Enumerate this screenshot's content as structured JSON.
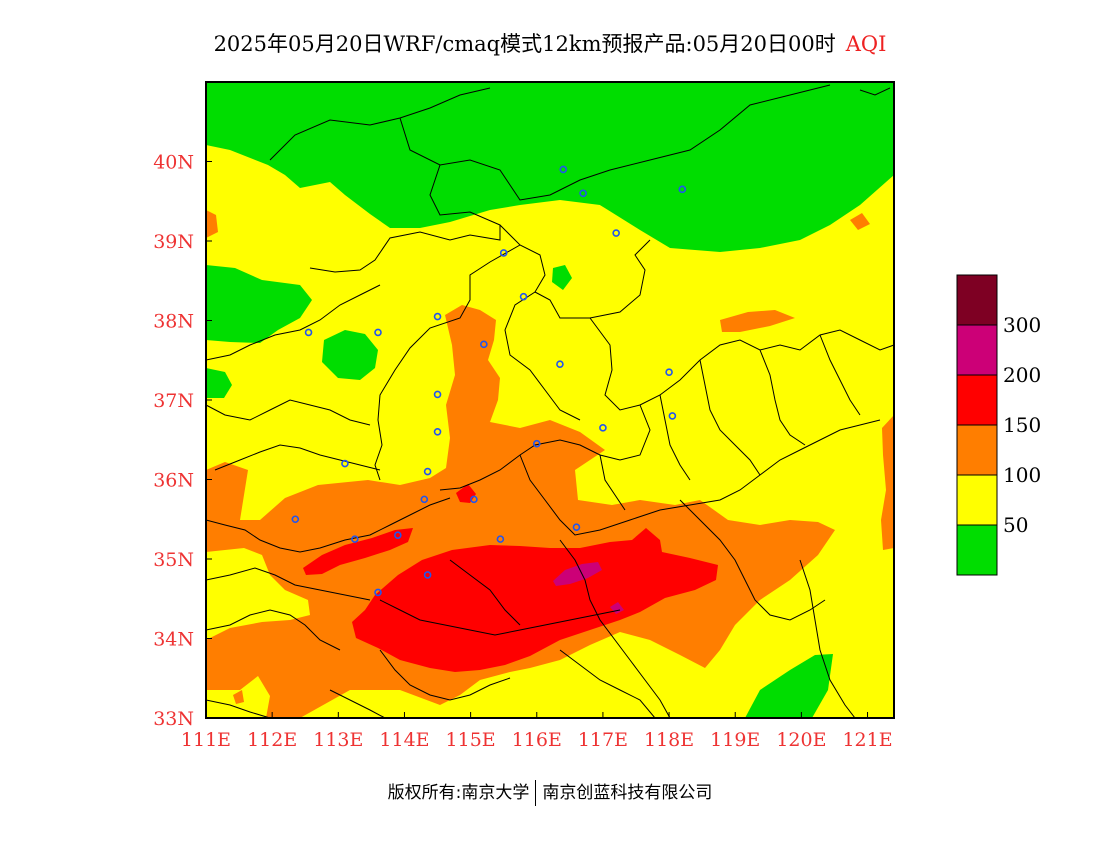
{
  "title": {
    "main": "2025年05月20日WRF/cmaq模式12km预报产品:05月20日00时",
    "variable": "AQI"
  },
  "map": {
    "lon_range": [
      111,
      121.4
    ],
    "lat_range": [
      33,
      41
    ],
    "lon_ticks": [
      {
        "value": 111,
        "label": "111E"
      },
      {
        "value": 112,
        "label": "112E"
      },
      {
        "value": 113,
        "label": "113E"
      },
      {
        "value": 114,
        "label": "114E"
      },
      {
        "value": 115,
        "label": "115E"
      },
      {
        "value": 116,
        "label": "116E"
      },
      {
        "value": 117,
        "label": "117E"
      },
      {
        "value": 118,
        "label": "118E"
      },
      {
        "value": 119,
        "label": "119E"
      },
      {
        "value": 120,
        "label": "120E"
      },
      {
        "value": 121,
        "label": "121E"
      }
    ],
    "lat_ticks": [
      {
        "value": 33,
        "label": "33N"
      },
      {
        "value": 34,
        "label": "34N"
      },
      {
        "value": 35,
        "label": "35N"
      },
      {
        "value": 36,
        "label": "36N"
      },
      {
        "value": 37,
        "label": "37N"
      },
      {
        "value": 38,
        "label": "38N"
      },
      {
        "value": 39,
        "label": "39N"
      },
      {
        "value": 40,
        "label": "40N"
      }
    ],
    "colors": {
      "good": "#00dd00",
      "moderate": "#ffff00",
      "sensitive": "#ff7e00",
      "unhealthy": "#ff0000",
      "very_unhealthy": "#cc0077",
      "hazardous": "#7e0023"
    },
    "stations": [
      [
        116.4,
        39.9
      ],
      [
        116.7,
        39.6
      ],
      [
        117.2,
        39.1
      ],
      [
        118.2,
        39.65
      ],
      [
        115.5,
        38.85
      ],
      [
        115.8,
        38.3
      ],
      [
        114.5,
        38.05
      ],
      [
        112.55,
        37.85
      ],
      [
        113.6,
        37.85
      ],
      [
        115.2,
        37.7
      ],
      [
        116.35,
        37.45
      ],
      [
        114.5,
        37.07
      ],
      [
        114.5,
        36.6
      ],
      [
        117.0,
        36.65
      ],
      [
        118.05,
        36.8
      ],
      [
        118.0,
        37.35
      ],
      [
        116.0,
        36.45
      ],
      [
        113.1,
        36.2
      ],
      [
        114.35,
        36.1
      ],
      [
        114.3,
        35.75
      ],
      [
        115.05,
        35.75
      ],
      [
        112.35,
        35.5
      ],
      [
        113.25,
        35.25
      ],
      [
        113.9,
        35.3
      ],
      [
        115.45,
        35.25
      ],
      [
        116.6,
        35.4
      ],
      [
        114.35,
        34.8
      ],
      [
        113.6,
        34.58
      ]
    ]
  },
  "legend": {
    "labels": [
      "50",
      "100",
      "150",
      "200",
      "300"
    ],
    "colors": [
      "#00dd00",
      "#ffff00",
      "#ff7e00",
      "#ff0000",
      "#cc0077",
      "#7e0023"
    ]
  },
  "copyright": {
    "left": "版权所有:南京大学",
    "right": "南京创蓝科技有限公司"
  }
}
